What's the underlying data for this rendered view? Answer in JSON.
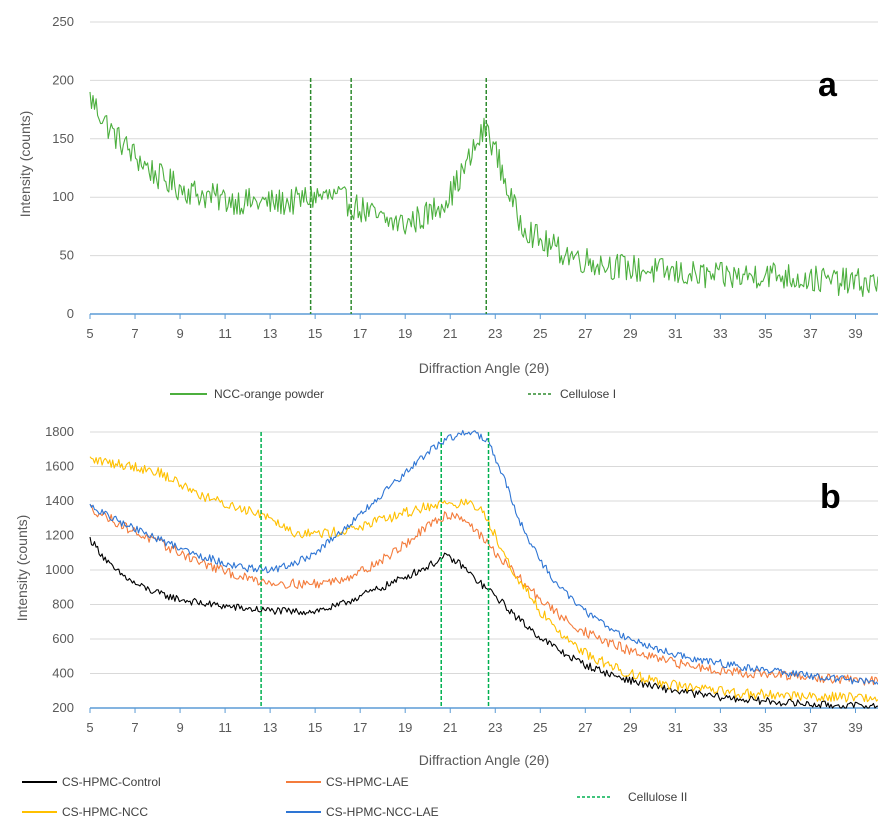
{
  "chart_data": [
    {
      "type": "line",
      "panel_label": "a",
      "xlabel": "Diffraction Angle (2θ)",
      "ylabel": "Intensity (counts)",
      "xlim": [
        5,
        40
      ],
      "ylim": [
        0,
        250
      ],
      "x_ticks": [
        "5",
        "7",
        "9",
        "11",
        "13",
        "15",
        "17",
        "19",
        "21",
        "23",
        "25",
        "27",
        "29",
        "31",
        "33",
        "35",
        "37",
        "39"
      ],
      "y_ticks": [
        "0",
        "50",
        "100",
        "150",
        "200",
        "250"
      ],
      "grid": "horizontal",
      "legend_position": "bottom",
      "series": [
        {
          "name": "NCC-orange powder",
          "color": "#4CAF3E",
          "noise": 12,
          "x": [
            5,
            6,
            7,
            8,
            9,
            10,
            11,
            12,
            13,
            14,
            15,
            16,
            17,
            18,
            19,
            20,
            21,
            21.8,
            22.3,
            22.6,
            23,
            23.5,
            24,
            25,
            26,
            27,
            28,
            29,
            30,
            31,
            32,
            33,
            34,
            35,
            36,
            37,
            38,
            39,
            40
          ],
          "y": [
            185,
            155,
            135,
            118,
            108,
            102,
            98,
            96,
            95,
            96,
            101,
            100,
            90,
            80,
            77,
            85,
            102,
            130,
            150,
            160,
            140,
            110,
            82,
            62,
            53,
            46,
            42,
            39,
            37,
            35,
            33,
            32,
            32,
            35,
            32,
            30,
            28,
            27,
            26
          ]
        }
      ],
      "reference_lines": {
        "name": "Cellulose I",
        "color": "#2E8B2E",
        "x": [
          14.8,
          16.6,
          22.6
        ]
      }
    },
    {
      "type": "line",
      "panel_label": "b",
      "xlabel": "Diffraction Angle (2θ)",
      "ylabel": "Intensity (counts)",
      "xlim": [
        5,
        40
      ],
      "ylim": [
        200,
        1800
      ],
      "x_ticks": [
        "5",
        "7",
        "9",
        "11",
        "13",
        "15",
        "17",
        "19",
        "21",
        "23",
        "25",
        "27",
        "29",
        "31",
        "33",
        "35",
        "37",
        "39"
      ],
      "y_ticks": [
        "200",
        "400",
        "600",
        "800",
        "1000",
        "1200",
        "1400",
        "1600",
        "1800"
      ],
      "grid": "horizontal",
      "legend_position": "bottom",
      "series": [
        {
          "name": "CS-HPMC-Control",
          "color": "#000000",
          "noise": 22,
          "x": [
            5,
            6,
            7,
            8,
            9,
            10,
            11,
            12,
            13,
            14,
            15,
            16,
            17,
            18,
            19,
            20,
            20.8,
            21.5,
            22,
            23,
            24,
            25,
            26,
            27,
            28,
            29,
            30,
            31,
            32,
            33,
            34,
            35,
            36,
            37,
            38,
            39,
            40
          ],
          "y": [
            1180,
            1010,
            920,
            865,
            830,
            805,
            790,
            775,
            765,
            758,
            762,
            790,
            850,
            900,
            960,
            1020,
            1080,
            1030,
            960,
            850,
            720,
            610,
            520,
            450,
            400,
            360,
            325,
            300,
            280,
            263,
            250,
            240,
            231,
            222,
            216,
            212,
            208
          ]
        },
        {
          "name": "CS-HPMC-LAE",
          "color": "#F47C3C",
          "noise": 28,
          "x": [
            5,
            6,
            7,
            8,
            9,
            10,
            11,
            12,
            13,
            14,
            15,
            16,
            17,
            18,
            19,
            20,
            20.8,
            21.5,
            22,
            23,
            24,
            25,
            26,
            27,
            28,
            29,
            30,
            31,
            32,
            33,
            34,
            35,
            36,
            37,
            38,
            39,
            40
          ],
          "y": [
            1360,
            1290,
            1220,
            1160,
            1100,
            1040,
            990,
            950,
            930,
            920,
            920,
            940,
            990,
            1060,
            1150,
            1250,
            1320,
            1310,
            1250,
            1100,
            960,
            830,
            720,
            640,
            580,
            530,
            490,
            460,
            440,
            420,
            405,
            395,
            385,
            375,
            370,
            360,
            355
          ]
        },
        {
          "name": "CS-HPMC-NCC",
          "color": "#FFC000",
          "noise": 30,
          "x": [
            5,
            6,
            7,
            8,
            9,
            10,
            11,
            12,
            12.8,
            13.5,
            14,
            15,
            16,
            17,
            18,
            19,
            20,
            21,
            22,
            22.5,
            23,
            24,
            25,
            26,
            27,
            28,
            29,
            30,
            31,
            32,
            33,
            34,
            35,
            36,
            37,
            38,
            39,
            40
          ],
          "y": [
            1640,
            1620,
            1600,
            1570,
            1500,
            1430,
            1380,
            1350,
            1320,
            1270,
            1220,
            1210,
            1220,
            1250,
            1290,
            1330,
            1370,
            1390,
            1380,
            1330,
            1200,
            950,
            760,
            620,
            520,
            450,
            400,
            360,
            330,
            310,
            295,
            285,
            278,
            272,
            268,
            265,
            262,
            260
          ]
        },
        {
          "name": "CS-HPMC-NCC-LAE",
          "color": "#2E75D4",
          "noise": 22,
          "x": [
            5,
            6,
            7,
            8,
            9,
            10,
            11,
            12,
            13,
            14,
            15,
            16,
            17,
            18,
            19,
            20,
            20.8,
            21.5,
            22,
            22.6,
            23,
            23.5,
            24,
            25,
            26,
            27,
            28,
            29,
            30,
            31,
            32,
            33,
            34,
            35,
            36,
            37,
            38,
            39,
            40
          ],
          "y": [
            1370,
            1300,
            1240,
            1180,
            1130,
            1080,
            1040,
            1010,
            1000,
            1030,
            1100,
            1200,
            1320,
            1440,
            1560,
            1680,
            1760,
            1790,
            1790,
            1760,
            1650,
            1500,
            1300,
            1050,
            880,
            760,
            670,
            600,
            550,
            510,
            480,
            460,
            440,
            420,
            400,
            385,
            370,
            360,
            350
          ]
        }
      ],
      "reference_lines": {
        "name": "Cellulose II",
        "color": "#00B050",
        "x": [
          12.6,
          20.6,
          22.7
        ]
      }
    }
  ]
}
